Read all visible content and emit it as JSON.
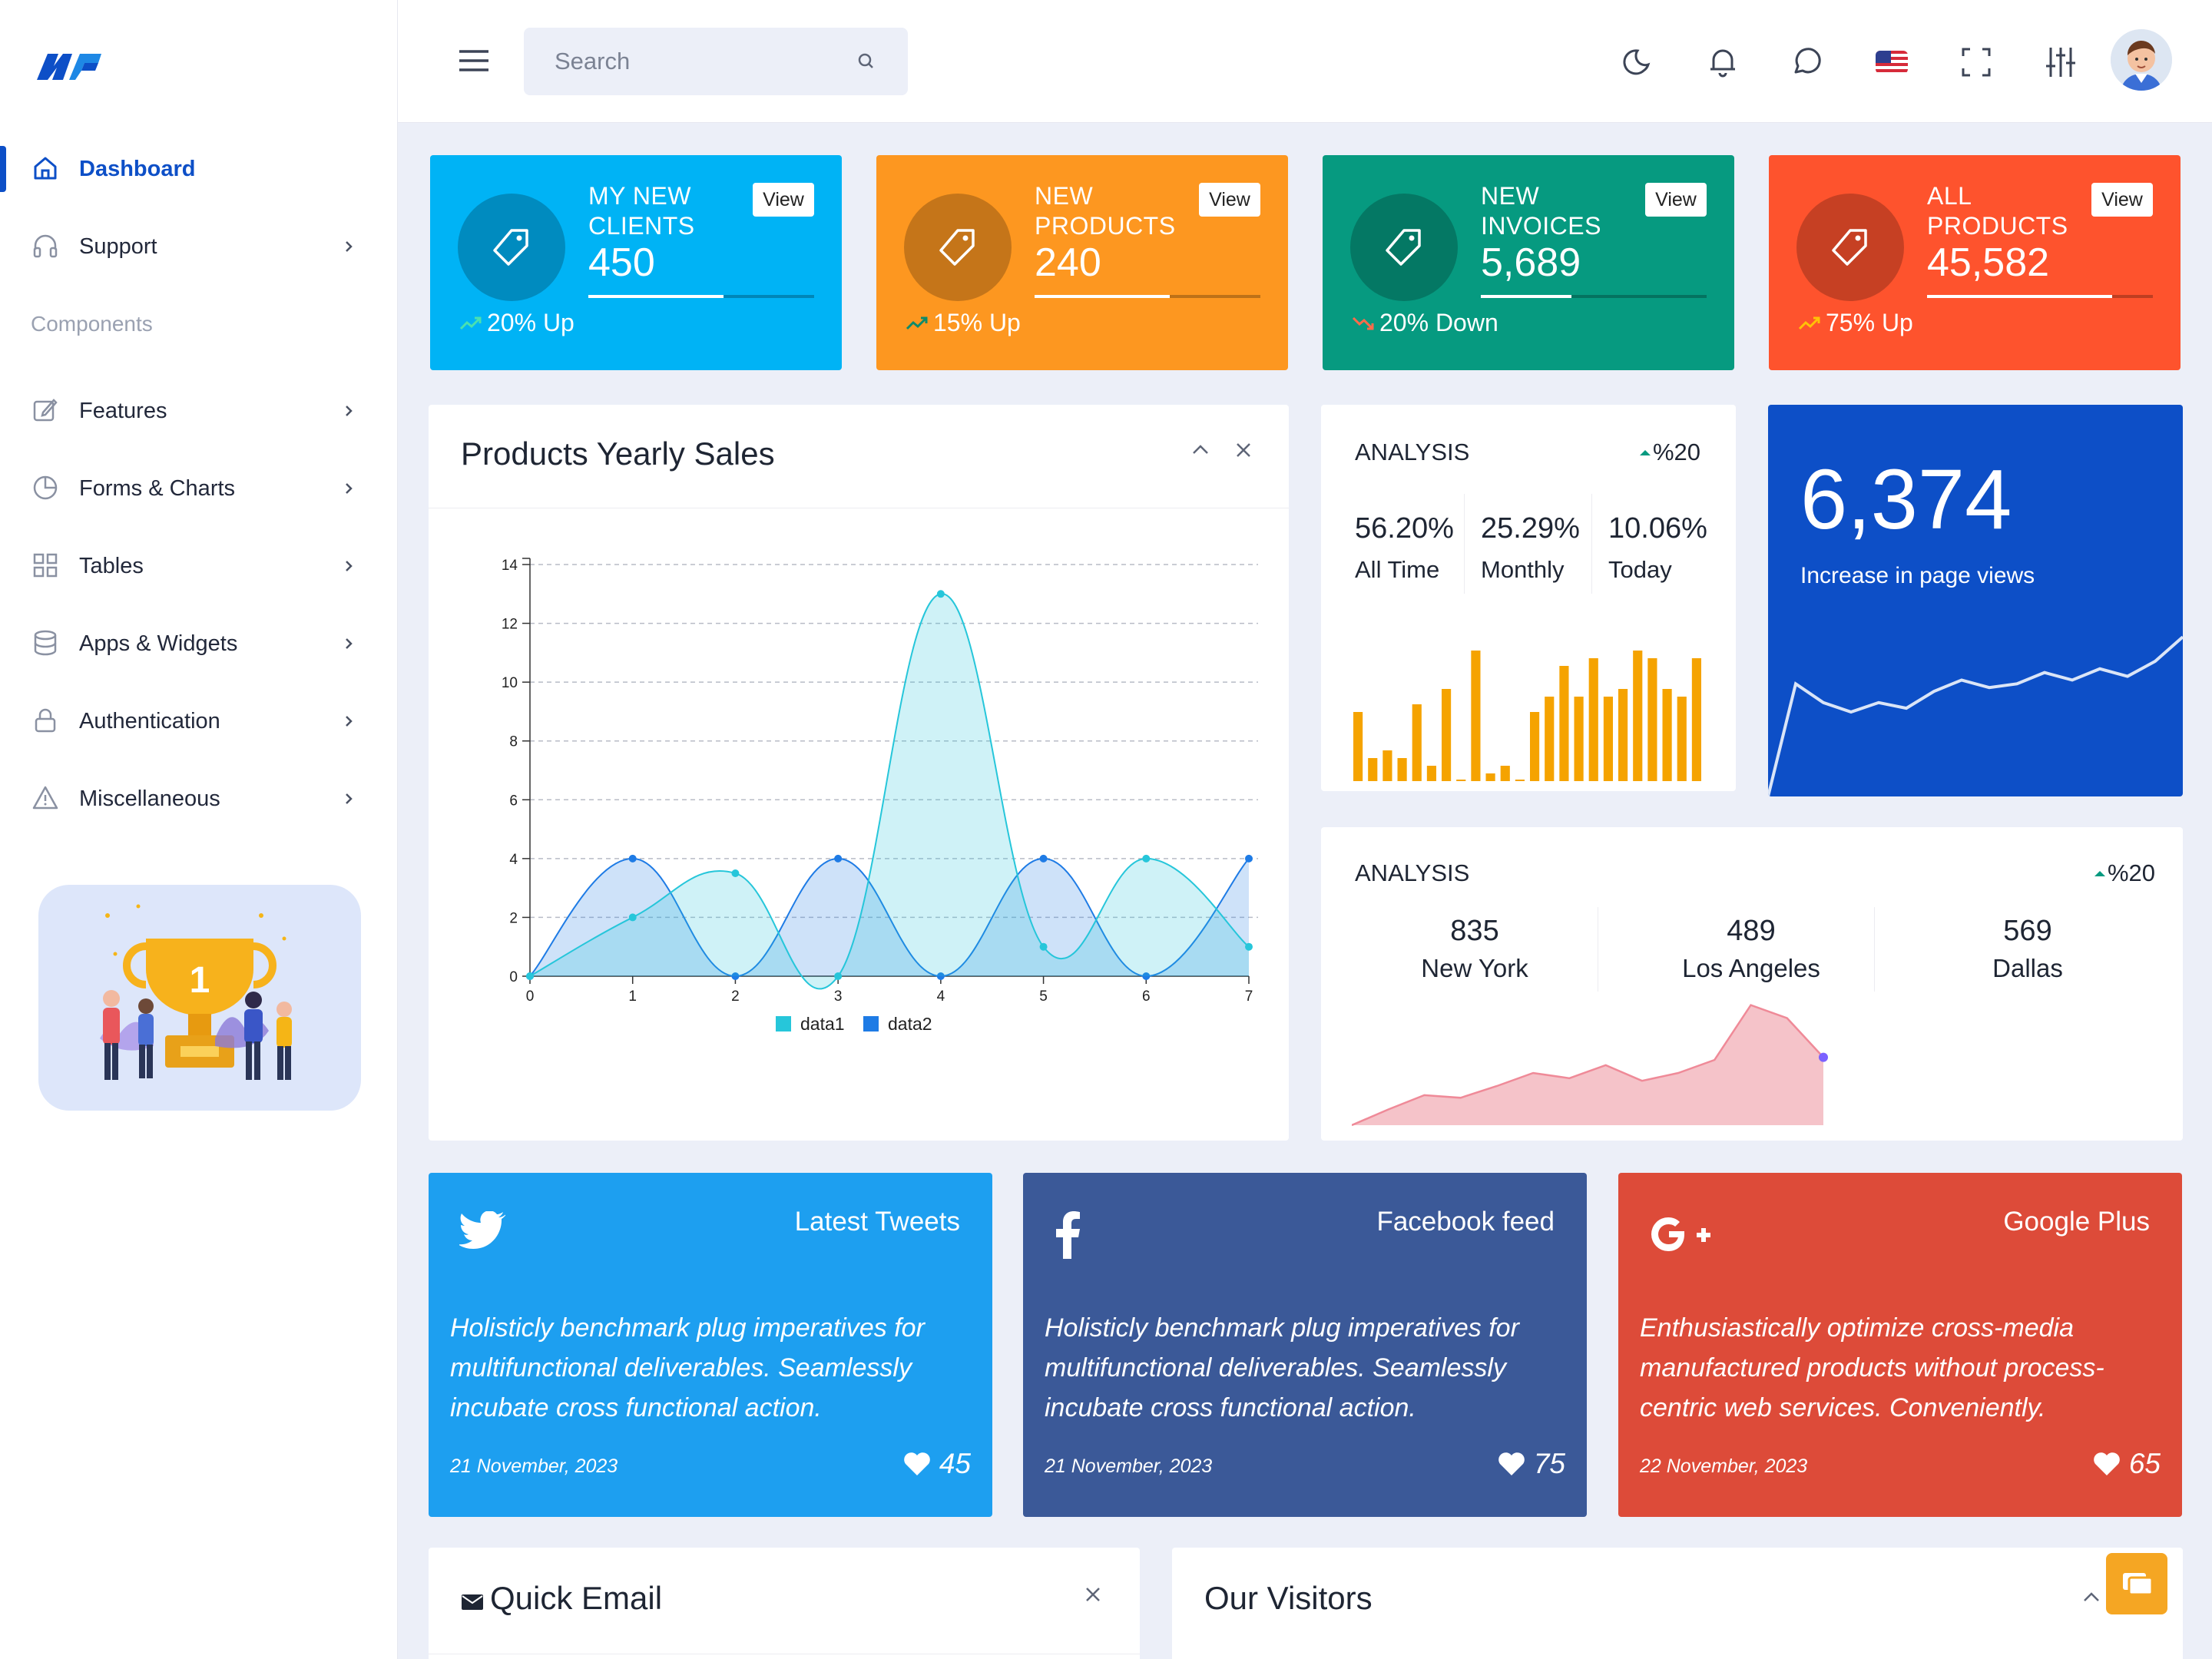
{
  "search": {
    "placeholder": "Search"
  },
  "sidebar": {
    "section_label": "Components",
    "items": [
      {
        "label": "Dashboard"
      },
      {
        "label": "Support"
      },
      {
        "label": "Features"
      },
      {
        "label": "Forms & Charts"
      },
      {
        "label": "Tables"
      },
      {
        "label": "Apps & Widgets"
      },
      {
        "label": "Authentication"
      },
      {
        "label": "Miscellaneous"
      }
    ]
  },
  "stats": [
    {
      "title1": "MY NEW",
      "title2": "CLIENTS",
      "value": "450",
      "view": "View",
      "change": "20% Up",
      "direction": "up",
      "progress": 0.6,
      "color": "#00b3f5"
    },
    {
      "title1": "NEW",
      "title2": "PRODUCTS",
      "value": "240",
      "view": "View",
      "change": "15% Up",
      "direction": "up",
      "progress": 0.6,
      "color": "#fd9720"
    },
    {
      "title1": "NEW",
      "title2": "INVOICES",
      "value": "5,689",
      "view": "View",
      "change": "20% Down",
      "direction": "down",
      "progress": 0.4,
      "color": "#069a80"
    },
    {
      "title1": "ALL",
      "title2": "PRODUCTS",
      "value": "45,582",
      "view": "View",
      "change": "75% Up",
      "direction": "up",
      "progress": 0.82,
      "color": "#fe532d"
    }
  ],
  "sales_card": {
    "title": "Products Yearly Sales"
  },
  "chart_data": {
    "type": "area",
    "x": [
      0,
      1,
      2,
      3,
      4,
      5,
      6,
      7
    ],
    "ylim": [
      0,
      14
    ],
    "y_ticks": [
      0,
      2,
      4,
      6,
      8,
      10,
      12,
      14
    ],
    "grid": true,
    "legend": "bottom",
    "series": [
      {
        "name": "data1",
        "values": [
          0,
          2,
          3.5,
          0,
          13,
          1,
          4,
          1
        ],
        "color": "#26c6da"
      },
      {
        "name": "data2",
        "values": [
          0,
          4,
          0,
          4,
          0,
          4,
          0,
          4
        ],
        "color": "#1e7be5"
      }
    ]
  },
  "analysis1": {
    "title": "ANALYSIS",
    "percent": "%20",
    "metrics": [
      {
        "value": "56.20%",
        "label": "All Time"
      },
      {
        "value": "25.29%",
        "label": "Monthly"
      },
      {
        "value": "10.06%",
        "label": "Today"
      }
    ],
    "bars": [
      9,
      3,
      4,
      3,
      10,
      2,
      12,
      0,
      17,
      1,
      2,
      0,
      9,
      11,
      15,
      11,
      16,
      11,
      12,
      17,
      16,
      12,
      11,
      16
    ],
    "bar_color": "#f5a300"
  },
  "pageviews": {
    "value": "6,374",
    "label": "Increase in page views",
    "trend": [
      0,
      6,
      5,
      4.5,
      5,
      4.7,
      5.6,
      6.2,
      5.8,
      6,
      6.6,
      6.2,
      6.8,
      6.4,
      7.2,
      8.5
    ]
  },
  "analysis2": {
    "title": "ANALYSIS",
    "percent": "%20",
    "cities": [
      {
        "value": "835",
        "label": "New York"
      },
      {
        "value": "489",
        "label": "Los Angeles"
      },
      {
        "value": "569",
        "label": "Dallas"
      }
    ],
    "trend": [
      0,
      1.2,
      2.3,
      2.1,
      3.0,
      4.0,
      3.6,
      4.6,
      3.4,
      4.0,
      5.0,
      9.2,
      8.2,
      5.2
    ]
  },
  "social": [
    {
      "name": "Latest Tweets",
      "text": "Holisticly benchmark plug imperatives for multifunctional deliverables. Seamlessly incubate cross functional action.",
      "date": "21 November, 2023",
      "likes": "45",
      "color": "#1d9ff0",
      "icon": "twitter-icon"
    },
    {
      "name": "Facebook feed",
      "text": "Holisticly benchmark plug imperatives for multifunctional deliverables. Seamlessly incubate cross functional action.",
      "date": "21 November, 2023",
      "likes": "75",
      "color": "#3b5998",
      "icon": "facebook-icon"
    },
    {
      "name": "Google Plus",
      "text": "Enthusiastically optimize cross-media manufactured products without process-centric web services. Conveniently.",
      "date": "22 November, 2023",
      "likes": "65",
      "color": "#dd4b39",
      "icon": "google-plus-icon"
    }
  ],
  "quick_email": {
    "title": "Quick Email"
  },
  "visitors": {
    "title": "Our Visitors"
  }
}
